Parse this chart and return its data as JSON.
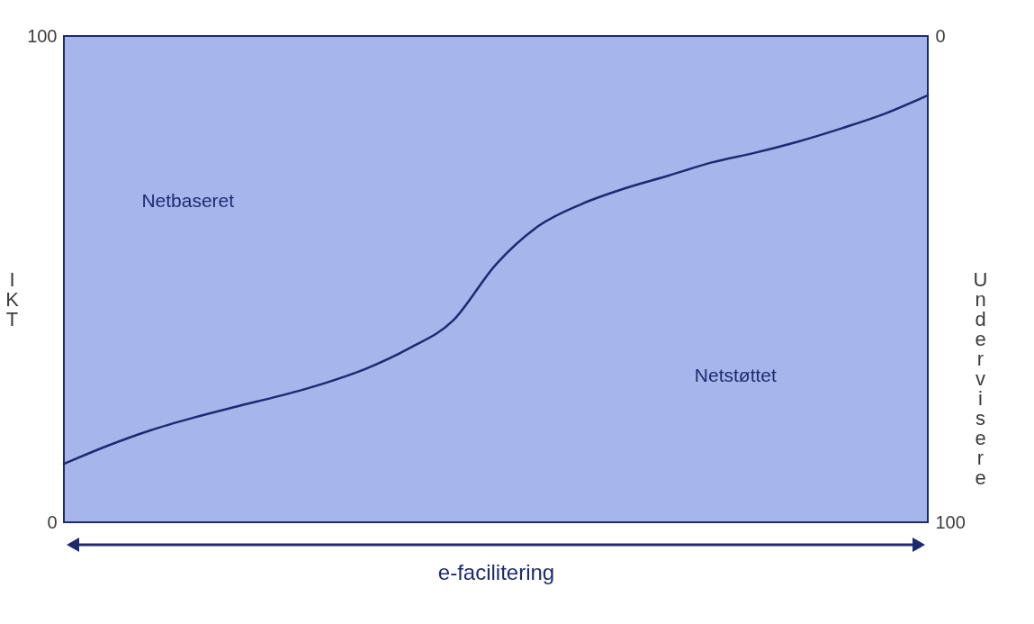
{
  "chart_data": {
    "type": "line",
    "xlabel": "e-facilitering",
    "ylabel": "IKT",
    "y2label": "Undervisere",
    "categories": [
      null,
      null,
      null,
      null,
      null,
      null,
      null,
      null,
      null,
      null,
      null,
      null,
      null,
      null,
      null,
      null,
      null,
      null,
      null,
      null,
      null
    ],
    "series": [
      {
        "color": "#1e2a6e",
        "values": [
          12,
          15.7,
          18.9,
          21.5,
          23.8,
          26,
          28.5,
          31.6,
          35.8,
          41.4,
          53,
          61,
          65.5,
          68.7,
          71.3,
          74,
          76,
          78.3,
          81,
          84,
          87.8
        ]
      }
    ],
    "ylim": [
      0,
      100
    ],
    "yticks": [
      0,
      100
    ],
    "y2lim": [
      100,
      0
    ],
    "y2ticks": [
      100,
      0
    ],
    "tick_labels": "y",
    "grid": false,
    "marker": "none",
    "line_style": "solid",
    "annotations": [
      "Netbaseret",
      "Netstøttet"
    ]
  }
}
